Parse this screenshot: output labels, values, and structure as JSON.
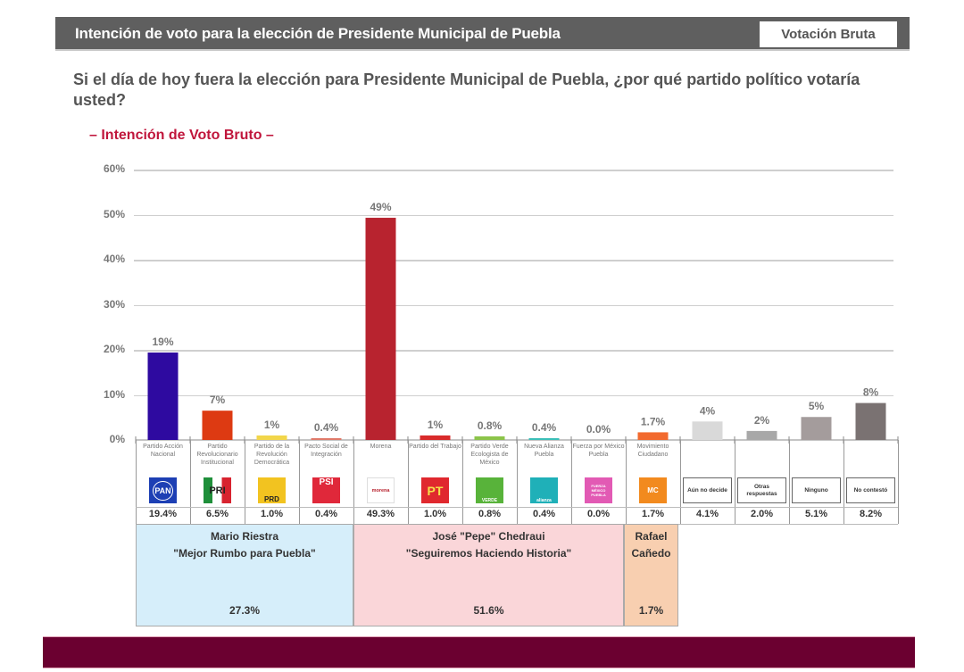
{
  "header": {
    "title": "Intención de voto para la elección de Presidente Municipal de Puebla",
    "badge": "Votación Bruta"
  },
  "question": "Si el día de hoy fuera la elección para Presidente Municipal de Puebla, ¿por qué partido político votaría usted?",
  "subtitle": "– Intención de Voto Bruto –",
  "colors": {
    "header_bg": "#5f5f5f",
    "subtitle": "#c0163c",
    "footer": "#6b0030",
    "coalition_1": "#d6eefa",
    "coalition_2": "#fad6d9",
    "coalition_3": "#f8cfb0"
  },
  "chart_data": {
    "type": "bar",
    "title": "– Intención de Voto Bruto –",
    "xlabel": "",
    "ylabel": "",
    "ylim": [
      0,
      60
    ],
    "yticks": [
      "0%",
      "10%",
      "20%",
      "30%",
      "40%",
      "50%",
      "60%"
    ],
    "grid": true,
    "categories": [
      "Partido Acción Nacional",
      "Partido Revolucionario Institucional",
      "Partido de la Revolución Democrática",
      "Pacto Social de Integración",
      "Morena",
      "Partido del Trabajo",
      "Partido Verde Ecologista de México",
      "Nueva Alianza Puebla",
      "Fuerza por México Puebla",
      "Movimiento Ciudadano",
      "Aún no decide",
      "Otras respuestas",
      "Ninguno",
      "No contestó"
    ],
    "values": [
      19.4,
      6.5,
      1.0,
      0.4,
      49.3,
      1.0,
      0.8,
      0.4,
      0.0,
      1.7,
      4.1,
      2.0,
      5.1,
      8.2
    ],
    "bar_labels": [
      "19%",
      "7%",
      "1%",
      "0.4%",
      "49%",
      "1%",
      "0.8%",
      "0.4%",
      "0.0%",
      "1.7%",
      "4%",
      "2%",
      "5%",
      "8%"
    ],
    "table_values": [
      "19.4%",
      "6.5%",
      "1.0%",
      "0.4%",
      "49.3%",
      "1.0%",
      "0.8%",
      "0.4%",
      "0.0%",
      "1.7%",
      "4.1%",
      "2.0%",
      "5.1%",
      "8.2%"
    ],
    "bar_colors": [
      "#2e0aa0",
      "#dd3a12",
      "#f2d64a",
      "#e07a6a",
      "#b8232f",
      "#d92b2b",
      "#8cc44a",
      "#3bbfb8",
      "#e05aa8",
      "#f26a2e",
      "#d9d9d9",
      "#a8a8a8",
      "#a49c9c",
      "#7a7272"
    ],
    "logos": [
      "PAN",
      "PRI",
      "PRD",
      "PSI",
      "morena",
      "PT",
      "VERDE",
      "alianza",
      "FUERZA MÉXICO PUEBLA",
      "MC",
      "",
      "",
      "",
      ""
    ],
    "logo_colors": [
      "#1d3fb4",
      "#ffffff",
      "#f2c320",
      "#e0283a",
      "#ffffff",
      "#e0282e",
      "#58b33a",
      "#1fb0b8",
      "#e25ab4",
      "#f28a1e",
      "",
      "",
      "",
      ""
    ]
  },
  "coalitions": [
    {
      "candidate": "Mario Riestra",
      "slogan": "\"Mejor Rumbo para Puebla\"",
      "total": "27.3%"
    },
    {
      "candidate": "José \"Pepe\" Chedraui",
      "slogan": "\"Seguiremos Haciendo Historia\"",
      "total": "51.6%"
    },
    {
      "candidate": "Rafael",
      "slogan": "Cañedo",
      "total": "1.7%"
    }
  ]
}
